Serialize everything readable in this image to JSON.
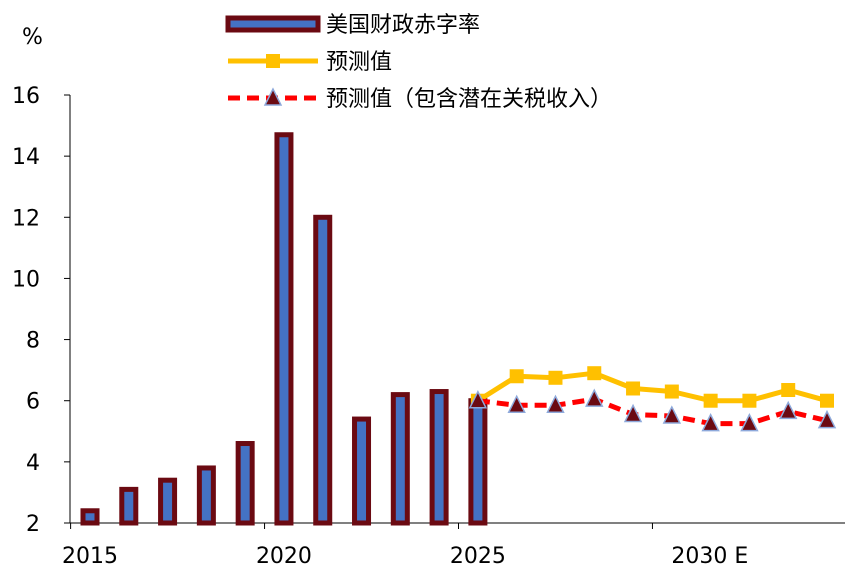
{
  "chart_data": {
    "type": "bar",
    "unit": "%",
    "ylim": [
      2,
      16
    ],
    "yticks": [
      2,
      4,
      6,
      8,
      10,
      12,
      14,
      16
    ],
    "x": [
      2015,
      2016,
      2017,
      2018,
      2019,
      2020,
      2021,
      2022,
      2023,
      2024,
      2025,
      2026,
      2027,
      2028,
      2029,
      2030,
      2031,
      2032,
      2033,
      2034
    ],
    "xtick_labels": [
      {
        "x": 2015,
        "label": "2015"
      },
      {
        "x": 2020,
        "label": "2020"
      },
      {
        "x": 2025,
        "label": "2025"
      },
      {
        "x": 2030,
        "label": "2030 E"
      }
    ],
    "legend_placement": "top-center",
    "series": [
      {
        "name": "美国财政赤字率",
        "kind": "bar",
        "fill": "#4472C4",
        "stroke": "#6B0A12",
        "x": [
          2015,
          2016,
          2017,
          2018,
          2019,
          2020,
          2021,
          2022,
          2023,
          2024,
          2025
        ],
        "values": [
          2.4,
          3.1,
          3.4,
          3.8,
          4.6,
          14.7,
          12.0,
          5.4,
          6.2,
          6.3,
          6.0
        ]
      },
      {
        "name": "预测值",
        "kind": "line",
        "color": "#FFC000",
        "marker": "square",
        "x": [
          2025,
          2026,
          2027,
          2028,
          2029,
          2030,
          2031,
          2032,
          2033,
          2034
        ],
        "values": [
          6.0,
          6.8,
          6.75,
          6.9,
          6.4,
          6.3,
          6.0,
          6.0,
          6.35,
          6.0
        ]
      },
      {
        "name": "预测值（包含潜在关税收入）",
        "kind": "line",
        "color": "#FF0000",
        "dash": true,
        "marker": "triangle",
        "marker_fill": "#6B0A12",
        "x": [
          2025,
          2026,
          2027,
          2028,
          2029,
          2030,
          2031,
          2032,
          2033,
          2034
        ],
        "values": [
          6.0,
          5.85,
          5.85,
          6.05,
          5.55,
          5.5,
          5.25,
          5.25,
          5.65,
          5.35
        ]
      }
    ]
  }
}
